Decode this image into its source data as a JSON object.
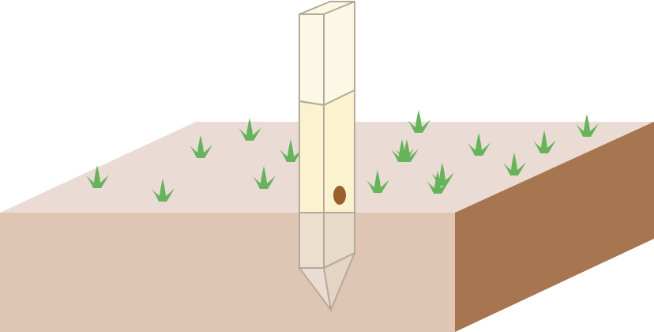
{
  "scene": {
    "subject": "soil-block-with-wooden-stake",
    "colors": {
      "background": "#ffffff",
      "soil_top": "#eadcd5",
      "soil_front": "#dfc5b3",
      "soil_side": "#a7754f",
      "grass": "#66b35c",
      "stake_top": "#fdf8e6",
      "stake_mid": "#fbf3cf",
      "stake_underground": "#ebe0ce",
      "stake_outline": "#b7a99a",
      "stake_knot": "#9b5f2f"
    },
    "grass_tufts": [
      "grass-tuft",
      "grass-tuft",
      "grass-tuft",
      "grass-tuft",
      "grass-tuft",
      "grass-tuft",
      "grass-tuft",
      "grass-tuft",
      "grass-tuft",
      "grass-tuft",
      "grass-tuft",
      "grass-tuft",
      "grass-tuft",
      "grass-tuft",
      "grass-tuft",
      "grass-tuft"
    ]
  }
}
